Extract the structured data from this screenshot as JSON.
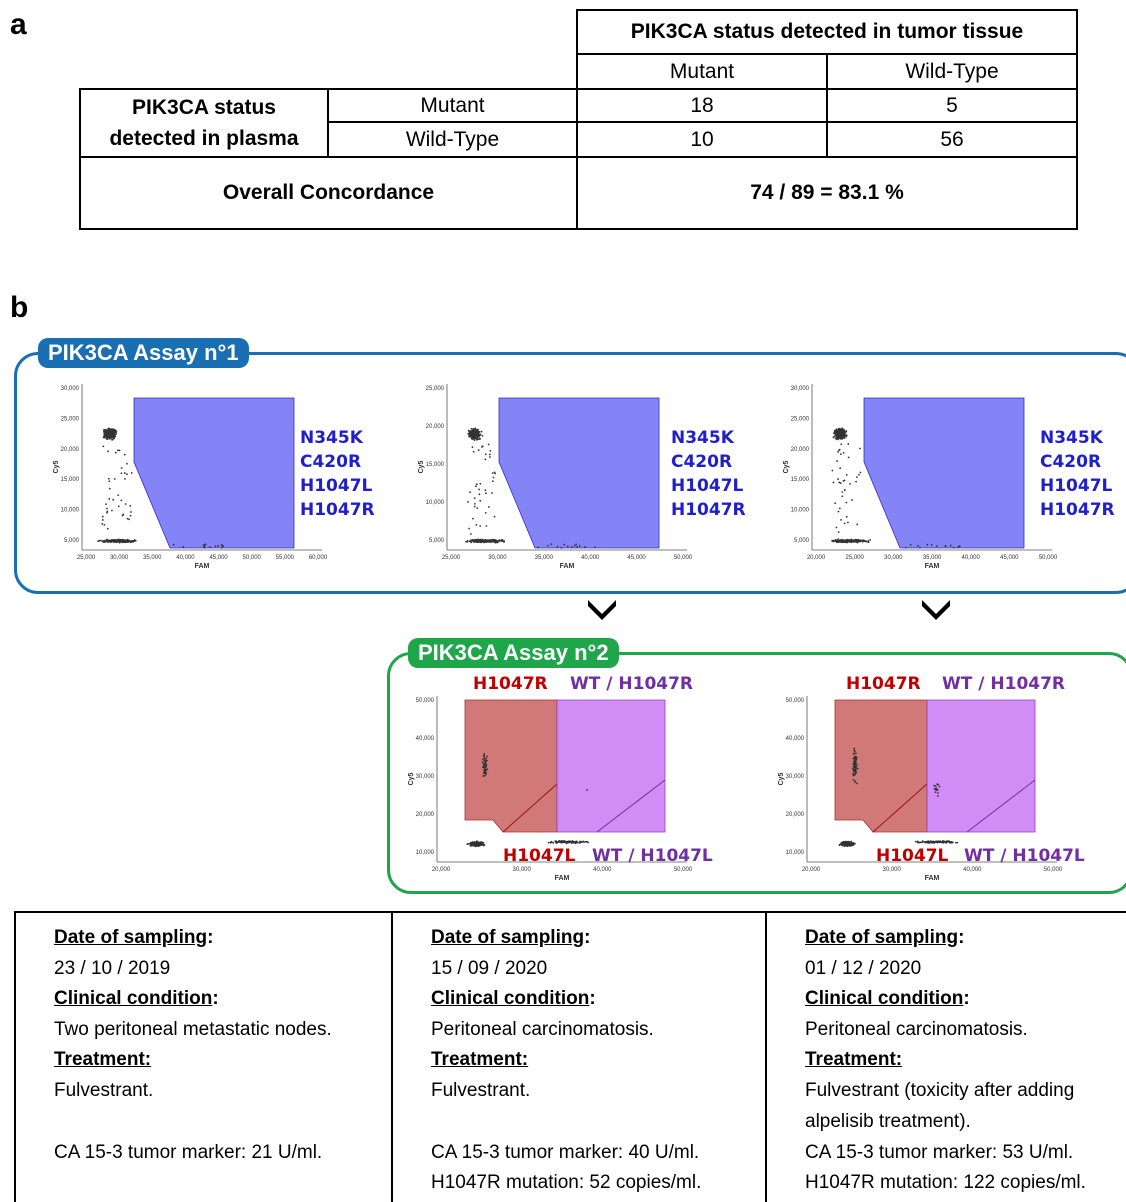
{
  "panel_a_letter": "a",
  "panel_b_letter": "b",
  "table_a": {
    "tissue_header": "PIK3CA status detected in tumor tissue",
    "col_mutant": "Mutant",
    "col_wildtype": "Wild-Type",
    "plasma_header_line1": "PIK3CA status",
    "plasma_header_line2": "detected in plasma",
    "row_mutant": "Mutant",
    "row_wildtype": "Wild-Type",
    "cells": {
      "mm": "18",
      "mw": "5",
      "wm": "10",
      "ww": "56"
    },
    "overall_label": "Overall Concordance",
    "overall_value": "74 / 89 = 83.1 %"
  },
  "assay1": {
    "tag": "PIK3CA Assay n°1",
    "mutations": [
      "N345K",
      "C420R",
      "H1047L",
      "H1047R"
    ],
    "x_axis_title": "FAM",
    "y_axis_title": "Cy5",
    "plots": [
      {
        "x_ticks": [
          "25,000",
          "30,000",
          "35,000",
          "40,000",
          "45,000",
          "50,000",
          "55,000",
          "60,000"
        ],
        "y_ticks": [
          "30,000",
          "25,000",
          "20,000",
          "15,000",
          "10,000",
          "5,000"
        ]
      },
      {
        "x_ticks": [
          "25,000",
          "30,000",
          "35,000",
          "40,000",
          "45,000",
          "50,000"
        ],
        "y_ticks": [
          "25,000",
          "20,000",
          "15,000",
          "10,000",
          "5,000"
        ]
      },
      {
        "x_ticks": [
          "20,000",
          "25,000",
          "30,000",
          "35,000",
          "40,000",
          "45,000",
          "50,000"
        ],
        "y_ticks": [
          "30,000",
          "25,000",
          "20,000",
          "15,000",
          "10,000",
          "5,000"
        ]
      }
    ]
  },
  "assay2": {
    "tag": "PIK3CA Assay n°2",
    "label_top_left": "H1047R",
    "label_top_right": "WT / H1047R",
    "label_bottom_left": "H1047L",
    "label_bottom_right": "WT / H1047L",
    "x_axis_title": "FAM",
    "y_axis_title": "Cy5",
    "x_ticks": [
      "20,000",
      "30,000",
      "40,000",
      "50,000"
    ],
    "y_ticks": [
      "50,000",
      "40,000",
      "30,000",
      "20,000",
      "10,000"
    ]
  },
  "colors": {
    "assay1": "#1a6fb3",
    "assay2": "#1fa64a",
    "gate_blue": "#6f6ff5",
    "gate_red": "#cc6a6a",
    "gate_purple": "#cc80f5",
    "label_red": "#c00000",
    "label_purple": "#7030a0",
    "mut_blue": "#2020c8"
  },
  "info": [
    {
      "date_head": "Date of sampling",
      "date": "23 / 10 / 2019",
      "cond_head": "Clinical condition",
      "cond": "Two peritoneal metastatic nodes.",
      "treat_head": "Treatment:",
      "treat": [
        "Fulvestrant.",
        ""
      ],
      "marker": "CA 15-3 tumor marker: 21 U/ml.",
      "mutation": ""
    },
    {
      "date_head": "Date of sampling",
      "date": "15 / 09 / 2020",
      "cond_head": "Clinical condition",
      "cond": "Peritoneal carcinomatosis.",
      "treat_head": "Treatment:",
      "treat": [
        "Fulvestrant.",
        ""
      ],
      "marker": "CA 15-3 tumor marker: 40 U/ml.",
      "mutation": "H1047R mutation: 52 copies/ml."
    },
    {
      "date_head": "Date of sampling",
      "date": "01 / 12 / 2020",
      "cond_head": "Clinical condition",
      "cond": "Peritoneal carcinomatosis.",
      "treat_head": "Treatment:",
      "treat": [
        "Fulvestrant (toxicity after adding",
        "alpelisib treatment)."
      ],
      "marker": "CA 15-3 tumor marker: 53 U/ml.",
      "mutation": "H1047R mutation: 122 copies/ml."
    }
  ],
  "colon": ":"
}
